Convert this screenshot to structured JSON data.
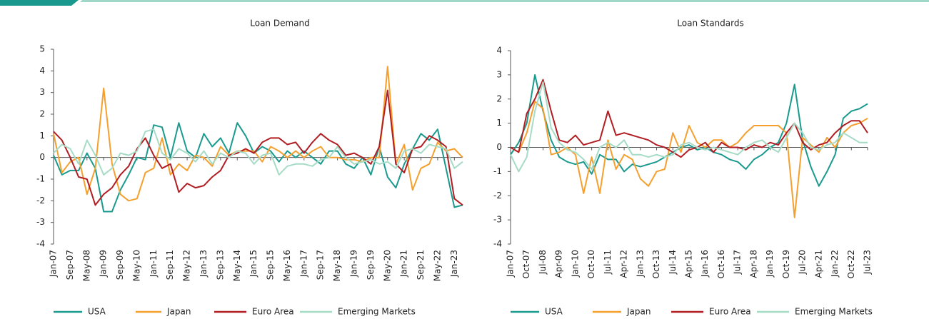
{
  "chart_data": [
    {
      "type": "line",
      "title": "Loan Demand",
      "categories": [
        "Jan-07",
        null,
        "Sep-07",
        null,
        "May-08",
        null,
        "Jan-09",
        null,
        "Sep-09",
        null,
        "May-10",
        null,
        "Jan-11",
        null,
        "Sep-11",
        null,
        "May-12",
        null,
        "Jan-13",
        null,
        "Sep-13",
        null,
        "May-14",
        null,
        "Jan-15",
        null,
        "Sep-15",
        null,
        "May-16",
        null,
        "Jan-17",
        null,
        "Sep-17",
        null,
        "May-18",
        null,
        "Jan-19",
        null,
        "Sep-19",
        null,
        "May-20",
        null,
        "Jan-21",
        null,
        "Sep-21",
        null,
        "May-22",
        null,
        "Jan-23",
        null
      ],
      "ylim": [
        -4,
        5
      ],
      "yticks": [
        -4,
        -3,
        -2,
        -1,
        0,
        1,
        2,
        3,
        4,
        5
      ],
      "series": [
        {
          "name": "USA",
          "color": "#1a9a8e",
          "values": [
            0.1,
            -0.8,
            -0.6,
            -0.6,
            0.2,
            -0.5,
            -2.5,
            -2.5,
            -1.5,
            -0.8,
            0,
            -0.1,
            1.5,
            1.4,
            0,
            1.6,
            0.3,
            0,
            1.1,
            0.5,
            0.9,
            0.2,
            1.6,
            1.0,
            0.2,
            0.5,
            0.3,
            -0.2,
            0.3,
            0,
            0.3,
            0,
            -0.3,
            0.3,
            0.3,
            -0.3,
            -0.5,
            0,
            -0.8,
            0.5,
            -0.9,
            -1.4,
            -0.3,
            0.4,
            1.1,
            0.8,
            1.3,
            -0.5,
            -2.3,
            -2.2
          ]
        },
        {
          "name": "Japan",
          "color": "#f5a02e",
          "values": [
            1.1,
            -0.7,
            -0.2,
            0,
            -1.7,
            -0.5,
            3.2,
            -0.3,
            -1.7,
            -2.0,
            -1.9,
            -0.7,
            -0.5,
            0.9,
            -0.8,
            -0.3,
            -0.6,
            0.1,
            0,
            -0.4,
            0.5,
            0.1,
            0.3,
            0.3,
            0.3,
            -0.2,
            0.5,
            0.3,
            0,
            0.3,
            0,
            0.3,
            0.5,
            0,
            0,
            -0.1,
            -0.1,
            -0.2,
            0,
            0,
            4.2,
            -0.3,
            0.6,
            -1.5,
            -0.5,
            -0.3,
            0.7,
            0.3,
            0.4,
            0
          ]
        },
        {
          "name": "Euro Area",
          "color": "#b01e24",
          "values": [
            1.2,
            0.8,
            0,
            -0.9,
            -1.0,
            -2.2,
            -1.7,
            -1.4,
            -0.8,
            -0.4,
            0.4,
            0.9,
            0.1,
            -0.5,
            -0.3,
            -1.6,
            -1.2,
            -1.4,
            -1.3,
            -0.9,
            -0.6,
            0.1,
            0.2,
            0.4,
            0.2,
            0.7,
            0.9,
            0.9,
            0.6,
            0.7,
            0.2,
            0.7,
            1.1,
            0.8,
            0.6,
            0.1,
            0.2,
            0,
            -0.3,
            0.5,
            3.1,
            -0.3,
            -0.7,
            0.4,
            0.5,
            1.0,
            0.8,
            0.5,
            -1.9,
            -2.2
          ]
        },
        {
          "name": "Emerging Markets",
          "color": "#a6dbc6",
          "values": [
            0.2,
            0.6,
            0.4,
            -0.3,
            0.8,
            0.1,
            -0.8,
            -0.5,
            0.2,
            0.1,
            0.3,
            1.2,
            1.3,
            0.2,
            -0.1,
            0.4,
            0.2,
            -0.2,
            0.3,
            -0.3,
            0.2,
            0,
            0.3,
            0.2,
            -0.3,
            0.1,
            0.2,
            -0.8,
            -0.4,
            -0.3,
            -0.3,
            -0.4,
            -0.1,
            0,
            0.5,
            0,
            -0.3,
            -0.2,
            -0.1,
            -0.3,
            -0.2,
            -0.5,
            0.3,
            0.4,
            0.2,
            0.6,
            0.5,
            0.4,
            -0.5,
            -0.2
          ]
        }
      ]
    },
    {
      "type": "line",
      "title": "Loan Standards",
      "categories": [
        "Jan-07",
        null,
        "Oct-07",
        null,
        "Jul-08",
        null,
        "Apr-09",
        null,
        "Jan-10",
        null,
        "Oct-10",
        null,
        "Jul-11",
        null,
        "Apr-12",
        null,
        "Jan-13",
        null,
        "Oct-13",
        null,
        "Jul-14",
        null,
        "Apr-15",
        null,
        "Jan-16",
        null,
        "Oct-16",
        null,
        "Jul-17",
        null,
        "Apr-18",
        null,
        "Jan-19",
        null,
        "Oct-19",
        null,
        "Jul-20",
        null,
        "Apr-21",
        null,
        "Jan-22",
        null,
        "Oct-22",
        null,
        "Jul-23"
      ],
      "ylim": [
        -4,
        4
      ],
      "yticks": [
        -4,
        -3,
        -2,
        -1,
        0,
        1,
        2,
        3,
        4
      ],
      "series": [
        {
          "name": "USA",
          "color": "#1a9a8e",
          "values": [
            -0.3,
            0.2,
            1.0,
            3.0,
            1.5,
            0.3,
            -0.4,
            -0.6,
            -0.7,
            -0.6,
            -1.1,
            -0.3,
            -0.5,
            -0.5,
            -1.0,
            -0.7,
            -0.8,
            -0.7,
            -0.6,
            -0.4,
            -0.2,
            0,
            0.1,
            -0.1,
            0,
            -0.2,
            -0.3,
            -0.5,
            -0.6,
            -0.9,
            -0.5,
            -0.3,
            0,
            0.2,
            1.0,
            2.6,
            0.3,
            -0.8,
            -1.6,
            -1.0,
            -0.3,
            1.2,
            1.5,
            1.6,
            1.8
          ]
        },
        {
          "name": "Japan",
          "color": "#f5a02e",
          "values": [
            0,
            -0.2,
            0.6,
            1.9,
            1.6,
            -0.3,
            -0.2,
            0,
            -0.3,
            -1.9,
            -0.4,
            -1.9,
            0.3,
            -0.9,
            -0.3,
            -0.5,
            -1.3,
            -1.6,
            -1.0,
            -0.9,
            0.6,
            -0.2,
            0.9,
            0.2,
            0,
            0.3,
            0.3,
            0,
            0.2,
            0.6,
            0.9,
            0.9,
            0.9,
            0.9,
            0.6,
            -2.9,
            0.4,
            0.1,
            -0.2,
            0.4,
            0,
            0.6,
            0.9,
            1.0,
            1.2
          ]
        },
        {
          "name": "Euro Area",
          "color": "#b01e24",
          "values": [
            0,
            -0.2,
            1.4,
            2.0,
            2.8,
            1.5,
            0.3,
            0.2,
            0.5,
            0.1,
            0.2,
            0.3,
            1.5,
            0.5,
            0.6,
            0.5,
            0.4,
            0.3,
            0.1,
            0,
            -0.2,
            -0.4,
            -0.1,
            0,
            0.2,
            -0.2,
            0.2,
            0,
            0,
            -0.1,
            0.1,
            0,
            0.2,
            0.1,
            0.6,
            1.0,
            0.2,
            -0.1,
            0.1,
            0.2,
            0.6,
            0.9,
            1.1,
            1.1,
            0.6
          ]
        },
        {
          "name": "Emerging Markets",
          "color": "#a6dbc6",
          "values": [
            -0.3,
            -1.0,
            -0.4,
            1.5,
            2.7,
            0.8,
            0.2,
            -0.1,
            -0.2,
            -0.5,
            -0.9,
            0,
            0.2,
            0,
            0.3,
            -0.3,
            -0.3,
            -0.4,
            -0.3,
            -0.4,
            -0.3,
            0.1,
            0.2,
            0,
            -0.1,
            0,
            -0.1,
            -0.2,
            -0.3,
            0,
            0.2,
            0.3,
            0,
            -0.2,
            0.4,
            1.0,
            0.6,
            0,
            -0.1,
            0.1,
            0.2,
            0.6,
            0.4,
            0.2,
            0.2
          ]
        }
      ]
    }
  ]
}
